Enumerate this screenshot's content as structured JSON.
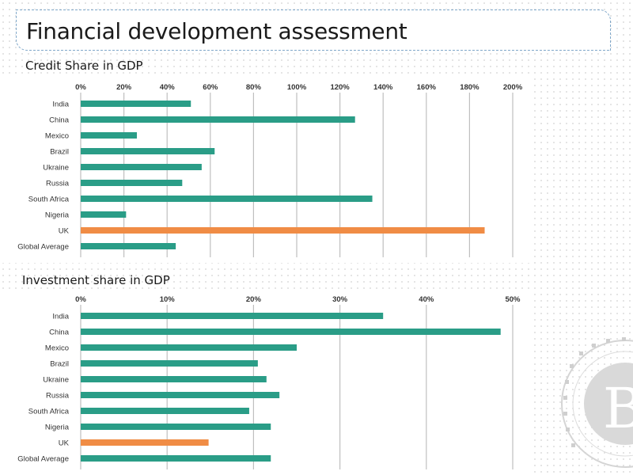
{
  "slide": {
    "title": "Financial development assessment"
  },
  "colors": {
    "bar": "#2a9d87",
    "highlight": "#f08c45",
    "grid": "#bfbfbf"
  },
  "chart_data": [
    {
      "type": "bar",
      "orientation": "horizontal",
      "title": "Credit Share in GDP",
      "categories": [
        "India",
        "China",
        "Mexico",
        "Brazil",
        "Ukraine",
        "Russia",
        "South Africa",
        "Nigeria",
        "UK",
        "Global Average"
      ],
      "values": [
        51,
        127,
        26,
        62,
        56,
        47,
        135,
        21,
        187,
        44
      ],
      "highlight_category": "UK",
      "xlim": [
        0,
        200
      ],
      "xticks": [
        0,
        20,
        40,
        60,
        80,
        100,
        120,
        140,
        160,
        180,
        200
      ],
      "tick_suffix": "%",
      "grid": true
    },
    {
      "type": "bar",
      "orientation": "horizontal",
      "title": "Investment share in GDP",
      "categories": [
        "India",
        "China",
        "Mexico",
        "Brazil",
        "Ukraine",
        "Russia",
        "South Africa",
        "Nigeria",
        "UK",
        "Global Average"
      ],
      "values": [
        35,
        48.6,
        25,
        20.5,
        21.5,
        23,
        19.5,
        22,
        14.8,
        22
      ],
      "highlight_category": "UK",
      "xlim": [
        0,
        50
      ],
      "xticks": [
        0,
        10,
        20,
        30,
        40,
        50
      ],
      "tick_suffix": "%",
      "grid": true
    }
  ]
}
